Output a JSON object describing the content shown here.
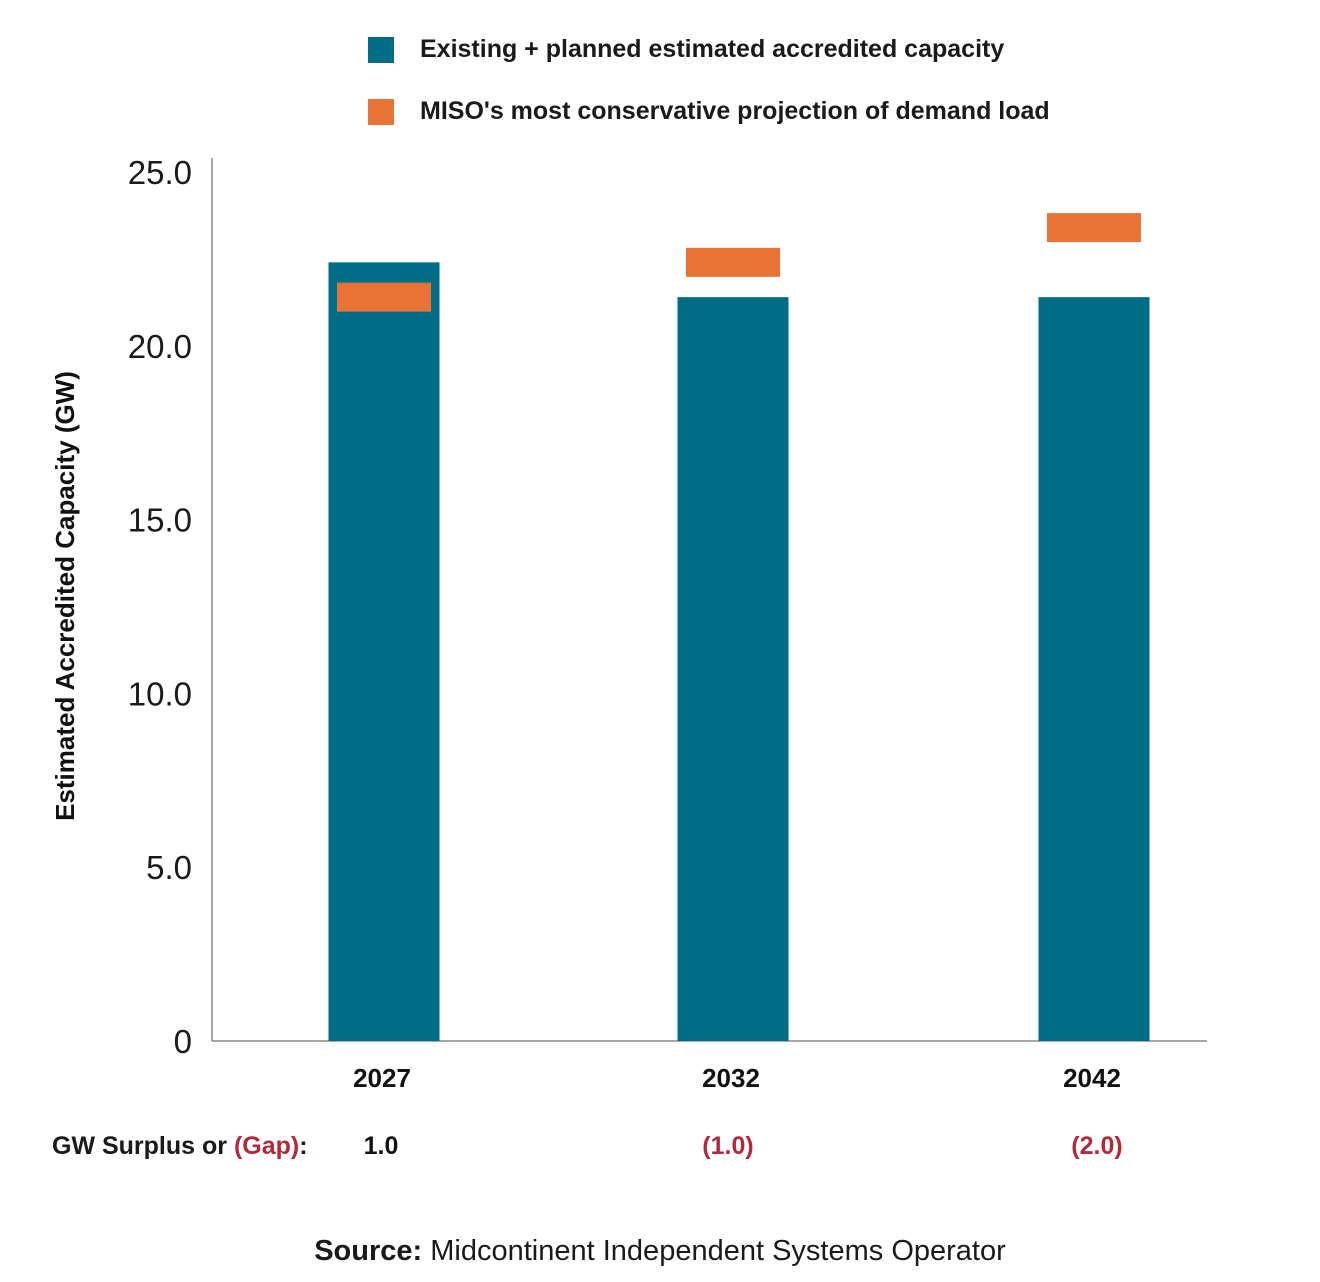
{
  "legend": {
    "capacity_label": "Existing + planned estimated accredited capacity",
    "demand_label": "MISO's most conservative projection of demand load",
    "capacity_color": "#006d87",
    "demand_color": "#e87335"
  },
  "gap_row": {
    "prefix": "GW Surplus or ",
    "gap_word": "(Gap)",
    "suffix": ":",
    "values": [
      "1.0",
      "(1.0)",
      "(2.0)"
    ],
    "value_colors": [
      "#111111",
      "#b22a3a",
      "#b22a3a"
    ]
  },
  "source": {
    "label": "Source:",
    "text": " Midcontinent Independent Systems Operator"
  },
  "chart_data": {
    "type": "bar",
    "title": "",
    "xlabel": "",
    "ylabel": "Estimated Accredited Capacity (GW)",
    "categories": [
      "2027",
      "2032",
      "2042"
    ],
    "series": [
      {
        "name": "Existing + planned estimated accredited capacity",
        "type": "bar",
        "values": [
          22.4,
          21.4,
          21.4
        ]
      },
      {
        "name": "MISO's most conservative projection of demand load",
        "type": "marker",
        "values": [
          21.4,
          22.4,
          23.4
        ]
      }
    ],
    "ylim": [
      0,
      25
    ],
    "yticks": [
      0,
      5,
      10,
      15,
      20,
      25
    ],
    "ytick_labels": [
      "0",
      "5.0",
      "10.0",
      "15.0",
      "20.0",
      "25.0"
    ],
    "surplus_gap": [
      1.0,
      -1.0,
      -2.0
    ],
    "grid": false
  }
}
